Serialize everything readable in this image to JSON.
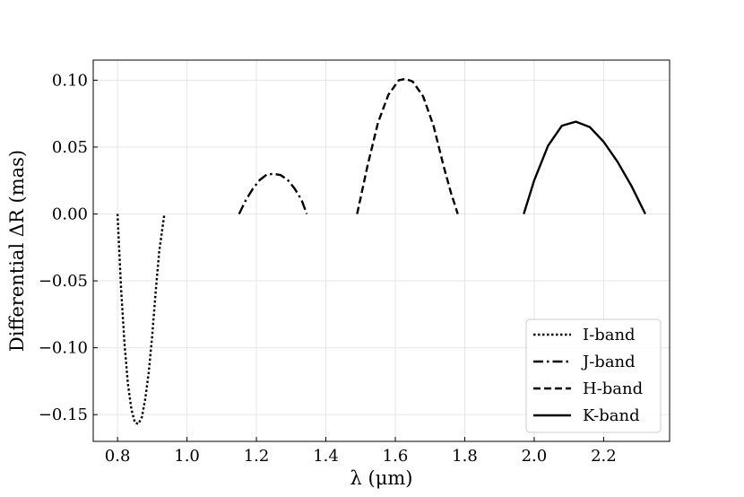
{
  "chart_data": {
    "type": "line",
    "xlabel": "λ (μm)",
    "ylabel": "Differential ΔR (mas)",
    "xlim": [
      0.73,
      2.39
    ],
    "ylim": [
      -0.17,
      0.115
    ],
    "x_ticks": [
      0.8,
      1.0,
      1.2,
      1.4,
      1.6,
      1.8,
      2.0,
      2.2
    ],
    "x_tick_labels": [
      "0.8",
      "1.0",
      "1.2",
      "1.4",
      "1.6",
      "1.8",
      "2.0",
      "2.2"
    ],
    "y_ticks": [
      0.1,
      0.05,
      0.0,
      -0.05,
      -0.1,
      -0.15
    ],
    "y_tick_labels": [
      "0.10",
      "0.05",
      "0.00",
      "−0.05",
      "−0.10",
      "−0.15"
    ],
    "grid": true,
    "legend_position": "bottom-right",
    "series": [
      {
        "name": "I-band",
        "style": "dotted",
        "color": "#000000",
        "x": [
          0.8,
          0.81,
          0.82,
          0.83,
          0.84,
          0.85,
          0.86,
          0.87,
          0.88,
          0.89,
          0.9,
          0.91,
          0.92,
          0.935
        ],
        "y": [
          0.0,
          -0.055,
          -0.097,
          -0.127,
          -0.146,
          -0.156,
          -0.157,
          -0.152,
          -0.138,
          -0.118,
          -0.091,
          -0.058,
          -0.028,
          0.0
        ]
      },
      {
        "name": "J-band",
        "style": "dashdot",
        "color": "#000000",
        "x": [
          1.15,
          1.17,
          1.19,
          1.21,
          1.23,
          1.25,
          1.27,
          1.29,
          1.31,
          1.33,
          1.345
        ],
        "y": [
          0.0,
          0.0105,
          0.019,
          0.0255,
          0.0295,
          0.03,
          0.029,
          0.0255,
          0.019,
          0.0105,
          0.0
        ]
      },
      {
        "name": "H-band",
        "style": "dashed",
        "color": "#000000",
        "x": [
          1.49,
          1.52,
          1.55,
          1.58,
          1.61,
          1.63,
          1.65,
          1.68,
          1.71,
          1.74,
          1.76,
          1.78
        ],
        "y": [
          0.0,
          0.036,
          0.068,
          0.089,
          0.1,
          0.101,
          0.099,
          0.088,
          0.066,
          0.035,
          0.016,
          0.0
        ]
      },
      {
        "name": "K-band",
        "style": "solid",
        "color": "#000000",
        "x": [
          1.97,
          2.0,
          2.04,
          2.08,
          2.12,
          2.16,
          2.2,
          2.24,
          2.28,
          2.32
        ],
        "y": [
          0.0,
          0.025,
          0.051,
          0.066,
          0.069,
          0.065,
          0.054,
          0.039,
          0.021,
          0.0
        ]
      }
    ]
  }
}
